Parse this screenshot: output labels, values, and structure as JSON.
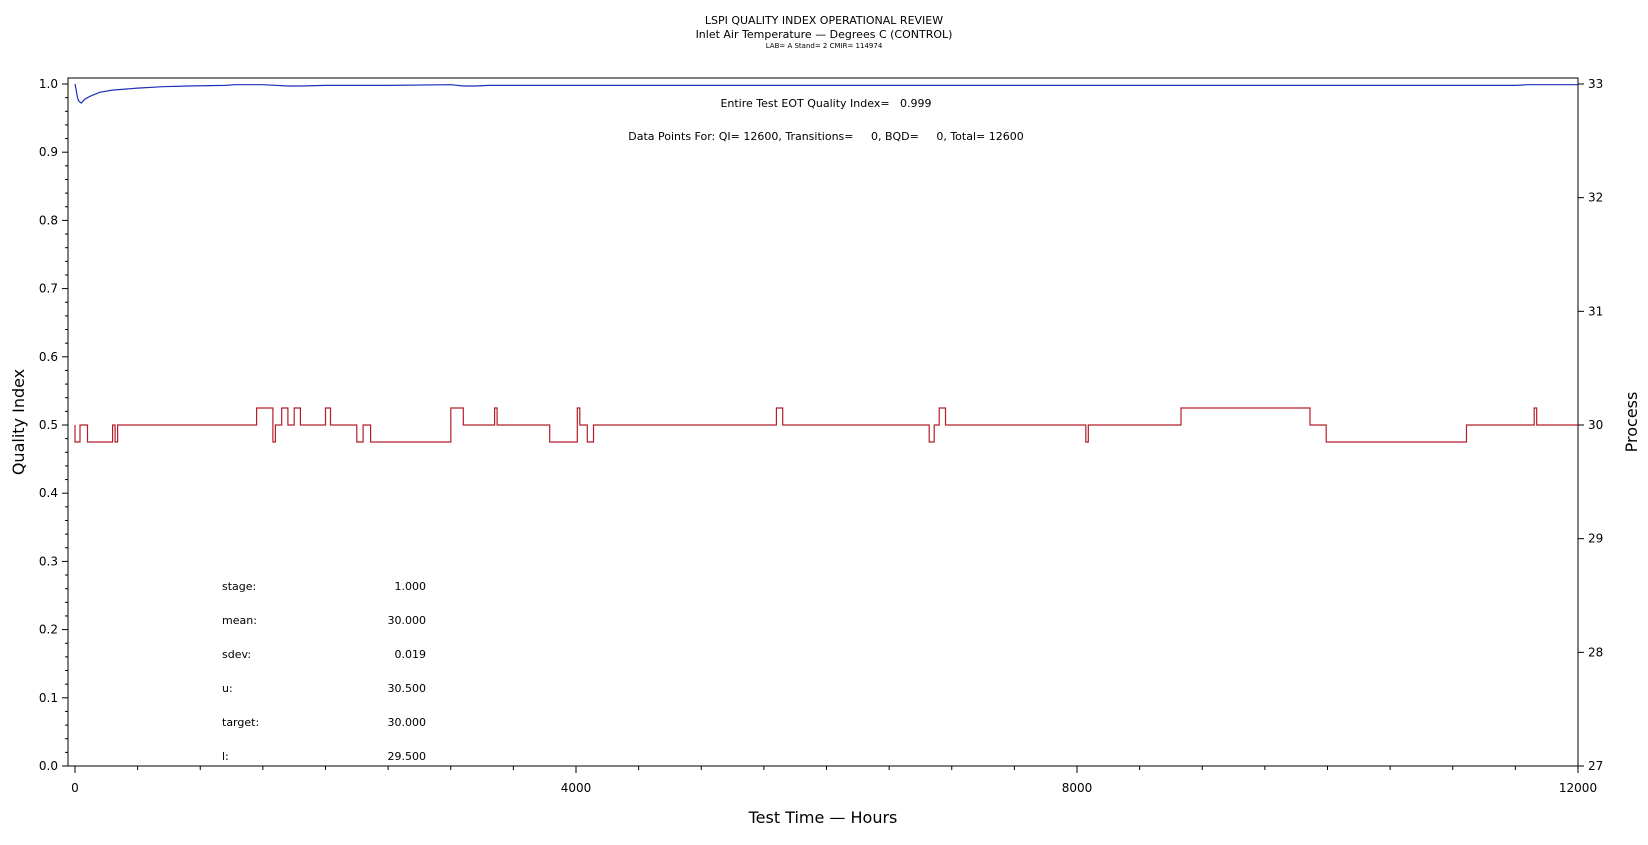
{
  "header": {
    "title": "LSPI QUALITY INDEX OPERATIONAL REVIEW",
    "subtitle": "Inlet Air Temperature — Degrees C (CONTROL)",
    "meta": "LAB= A Stand= 2 CMIR= 114974"
  },
  "annotations": {
    "quality_index": "Entire Test EOT Quality Index=   0.999",
    "data_points": "Data Points For: QI= 12600, Transitions=     0, BQD=     0, Total= 12600"
  },
  "stats": [
    {
      "label": "stage:",
      "value": "1.000"
    },
    {
      "label": "mean:",
      "value": "30.000"
    },
    {
      "label": "sdev:",
      "value": "0.019"
    },
    {
      "label": "u:",
      "value": "30.500"
    },
    {
      "label": "target:",
      "value": "30.000"
    },
    {
      "label": "l:",
      "value": "29.500"
    }
  ],
  "chart_data": {
    "type": "line",
    "title": "LSPI QUALITY INDEX OPERATIONAL REVIEW",
    "subtitle": "Inlet Air Temperature — Degrees C (CONTROL)",
    "xlabel": "Test Time — Hours",
    "ylabel_left": "Quality Index",
    "ylabel_right": "Process",
    "xlim": [
      0,
      12000
    ],
    "x_ticks": [
      0,
      4000,
      8000,
      12000
    ],
    "ylim_left": [
      0.0,
      1.0
    ],
    "y_ticks_left": [
      "0.0",
      "0.1",
      "0.2",
      "0.3",
      "0.4",
      "0.5",
      "0.6",
      "0.7",
      "0.8",
      "0.9",
      "1.0"
    ],
    "ylim_right": [
      27,
      33
    ],
    "y_ticks_right": [
      "27",
      "28",
      "29",
      "30",
      "31",
      "32",
      "33"
    ],
    "grid": false,
    "series": [
      {
        "color": "#1f2fb8",
        "axis": "left",
        "x": [
          0,
          10,
          20,
          30,
          50,
          80,
          120,
          200,
          300,
          500,
          700,
          900,
          1200,
          1280,
          1500,
          1700,
          1800,
          2000,
          2500,
          3000,
          3100,
          3200,
          3300,
          4000,
          6000,
          8000,
          10000,
          11500,
          11600,
          12000
        ],
        "y": [
          1.0,
          0.99,
          0.98,
          0.975,
          0.972,
          0.978,
          0.982,
          0.988,
          0.991,
          0.994,
          0.996,
          0.997,
          0.998,
          0.999,
          0.999,
          0.997,
          0.997,
          0.998,
          0.998,
          0.999,
          0.997,
          0.997,
          0.998,
          0.998,
          0.998,
          0.998,
          0.998,
          0.998,
          0.999,
          0.999
        ]
      },
      {
        "color": "#b21e2a",
        "axis": "right",
        "baseline": 30.0,
        "x": [
          0,
          40,
          100,
          300,
          320,
          340,
          1450,
          1500,
          1580,
          1600,
          1650,
          1700,
          1750,
          1800,
          2000,
          2020,
          2040,
          2250,
          2300,
          2360,
          2600,
          2880,
          3000,
          3040,
          3100,
          3350,
          3370,
          3790,
          4010,
          4030,
          4090,
          4140,
          5600,
          5650,
          6820,
          6860,
          6900,
          6950,
          8070,
          8090,
          8830,
          8900,
          9830,
          9860,
          9990,
          10020,
          11100,
          11110,
          11650,
          11670
        ],
        "y": [
          29.85,
          30.0,
          29.85,
          30.0,
          29.85,
          30.0,
          30.15,
          30.15,
          29.85,
          30.0,
          30.15,
          30.0,
          30.15,
          30.0,
          30.15,
          30.15,
          30.0,
          29.85,
          30.0,
          29.85,
          29.85,
          29.85,
          30.15,
          30.15,
          30.0,
          30.15,
          30.0,
          29.85,
          30.15,
          30.0,
          29.85,
          30.0,
          30.15,
          30.0,
          29.85,
          30.0,
          30.15,
          30.0,
          29.85,
          30.0,
          30.15,
          30.15,
          30.15,
          30.0,
          29.85,
          29.85,
          29.85,
          30.0,
          30.15,
          30.0
        ]
      }
    ]
  }
}
